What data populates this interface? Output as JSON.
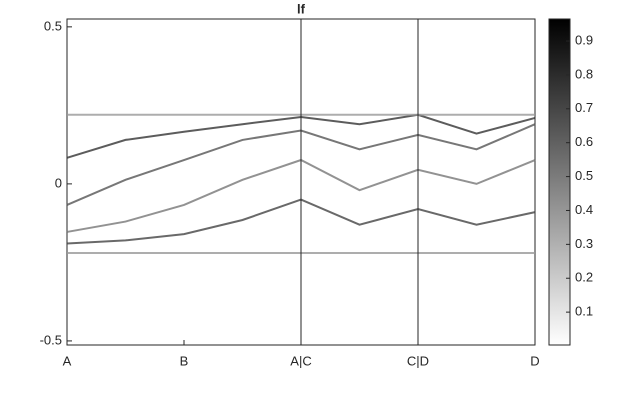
{
  "chart_data": {
    "type": "line",
    "title": "lf",
    "xlim": [
      0,
      4
    ],
    "xticks": [
      {
        "value": 0,
        "label": "A"
      },
      {
        "value": 1,
        "label": "B"
      },
      {
        "value": 2,
        "label": "A|C"
      },
      {
        "value": 3,
        "label": "C|D"
      },
      {
        "value": 4,
        "label": "D"
      }
    ],
    "ylim": [
      -0.513,
      0.525
    ],
    "yticks": [
      {
        "value": -0.5,
        "label": "-0.5"
      },
      0,
      0.5
    ],
    "clim": [
      0.003,
      0.965
    ],
    "cticks": [
      0.1,
      0.2,
      0.3,
      0.4,
      0.5,
      0.6,
      0.7,
      0.8,
      0.9
    ],
    "x": [
      0,
      0.5,
      1,
      1.5,
      2,
      2.5,
      3,
      3.5,
      4
    ],
    "series": [
      {
        "color": "#333333",
        "values": [
          0.083,
          0.14,
          0.166,
          0.19,
          0.213,
          0.19,
          0.22,
          0.16,
          0.21
        ]
      },
      {
        "color": "#555555",
        "values": [
          -0.067,
          0.013,
          0.076,
          0.14,
          0.17,
          0.11,
          0.156,
          0.11,
          0.19
        ]
      },
      {
        "color": "#777777",
        "values": [
          -0.153,
          -0.12,
          -0.067,
          0.013,
          0.076,
          -0.02,
          0.045,
          0,
          0.076
        ]
      },
      {
        "color": "#444444",
        "values": [
          -0.19,
          -0.18,
          -0.16,
          -0.115,
          -0.05,
          -0.13,
          -0.08,
          -0.13,
          -0.09
        ]
      },
      {
        "color": "#999999",
        "values": [
          0.22,
          0.22,
          0.22,
          0.22,
          0.22,
          0.22,
          0.22,
          0.22,
          0.22
        ]
      },
      {
        "color": "#999999",
        "values": [
          -0.22,
          -0.22,
          -0.22,
          -0.22,
          -0.22,
          -0.22,
          -0.22,
          -0.22,
          -0.22
        ]
      }
    ]
  }
}
